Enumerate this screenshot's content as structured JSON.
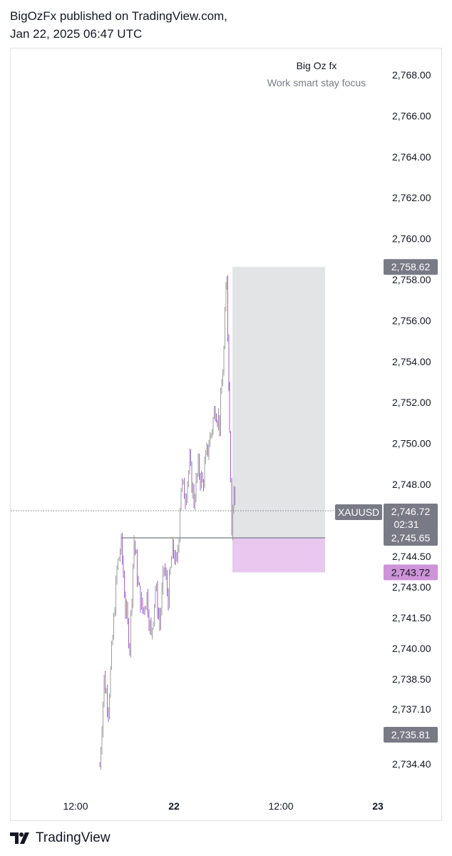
{
  "header": {
    "line1": "BigOzFx published on TradingView.com,",
    "line2": "Jan 22, 2025 06:47 UTC"
  },
  "chart_data": {
    "type": "candlestick",
    "symbol": "XAUUSD",
    "annotation": {
      "title": "Big Oz fx",
      "subtitle": "Work smart stay focus"
    },
    "x_tick_labels": [
      "12:00",
      "22",
      "12:00",
      "23"
    ],
    "y_tick_labels": [
      "2,768.00",
      "2,766.00",
      "2,764.00",
      "2,762.00",
      "2,760.00",
      "2,758.00",
      "2,756.00",
      "2,754.00",
      "2,752.00",
      "2,750.00",
      "2,748.00",
      "2,744.50",
      "2,743.00",
      "2,741.50",
      "2,740.00",
      "2,738.50",
      "2,737.10",
      "2,734.40"
    ],
    "price_badges": [
      {
        "label": "2,758.62",
        "role": "high",
        "color": "#787b86"
      },
      {
        "label": "2,746.72",
        "sub": "02:31",
        "role": "last-price",
        "color": "#787b86"
      },
      {
        "label": "2,745.65",
        "role": "entry",
        "color": "#787b86"
      },
      {
        "label": "2,743.72",
        "role": "stop-loss",
        "color": "#ce93d8"
      },
      {
        "label": "2,735.81",
        "role": "low",
        "color": "#787b86"
      }
    ],
    "position": {
      "entry": 2745.65,
      "target": 2758.62,
      "stop": 2743.72
    },
    "last_price": 2746.72,
    "high": 2758.62,
    "low": 2735.81,
    "colors": {
      "up": "#9e9e9e",
      "down": "#a063c9",
      "target_zone": "#e3e4e6",
      "stop_zone": "#e8c8ee"
    }
  },
  "footer": {
    "brand": "TradingView"
  }
}
